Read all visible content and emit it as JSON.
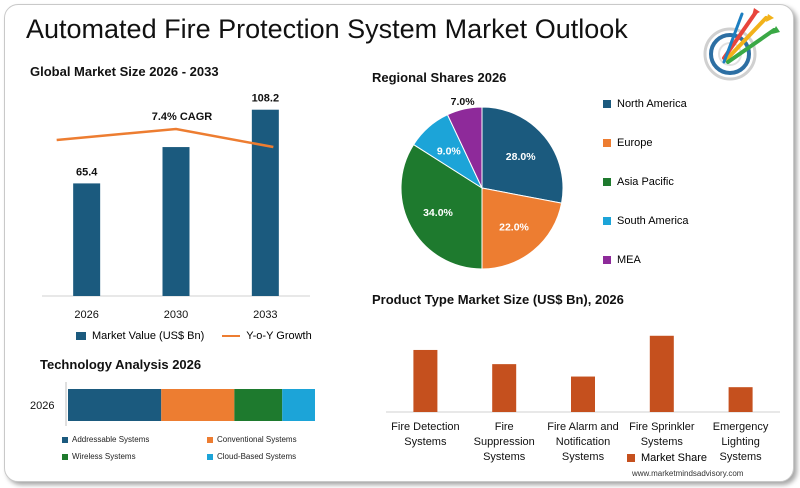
{
  "title": "Automated Fire Protection System Market Outlook",
  "source": "www.marketmindsadvisory.com",
  "colors": {
    "navy": "#1b5a7e",
    "orange": "#ed7d31",
    "green": "#1e7a2e",
    "lightblue": "#1ca4d8",
    "purple": "#8e2a9a",
    "rust": "#c5501e"
  },
  "chart_data": [
    {
      "type": "bar",
      "title": "Global Market Size 2026 - 2033",
      "categories": [
        "2026",
        "2030",
        "2033"
      ],
      "series": [
        {
          "name": "Market Value (US$ Bn)",
          "values": [
            65.4,
            null,
            108.2
          ]
        },
        {
          "name": "Y-o-Y Growth",
          "type": "line"
        }
      ],
      "bar_estimated": [
        65.4,
        86.5,
        108.2
      ],
      "annotation": "7.4% CAGR",
      "ylim": [
        0,
        115
      ]
    },
    {
      "type": "pie",
      "title": "Regional Shares 2026",
      "labels": [
        "North America",
        "Europe",
        "Asia Pacific",
        "South America",
        "MEA"
      ],
      "values": [
        28.0,
        22.0,
        34.0,
        9.0,
        7.0
      ],
      "value_labels": [
        "28.0%",
        "22.0%",
        "34.0%",
        "9.0%",
        "7.0%"
      ],
      "legend": "right"
    },
    {
      "type": "bar",
      "title": "Technology Analysis 2026",
      "orientation": "horizontal-stacked",
      "categories": [
        "2026"
      ],
      "series": [
        {
          "name": "Addressable Systems",
          "values": [
            37
          ]
        },
        {
          "name": "Conventional Systems",
          "values": [
            29
          ]
        },
        {
          "name": "Wireless Systems",
          "values": [
            19
          ]
        },
        {
          "name": "Cloud-Based Systems",
          "values": [
            13
          ]
        }
      ]
    },
    {
      "type": "bar",
      "title": "Product Type Market Size (US$ Bn), 2026",
      "categories": [
        "Fire Detection Systems",
        "Fire Suppression Systems",
        "Fire Alarm and Notification Systems",
        "Fire Sprinkler Systems",
        "Emergency Lighting Systems"
      ],
      "category_lines": [
        [
          "Fire Detection",
          "Systems"
        ],
        [
          "Fire",
          "Suppression",
          "Systems"
        ],
        [
          "Fire Alarm and",
          "Notification",
          "Systems"
        ],
        [
          "Fire Sprinkler",
          "Systems"
        ],
        [
          "Emergency",
          "Lighting",
          "Systems"
        ]
      ],
      "series": [
        {
          "name": "Market Share",
          "values": [
            17.5,
            13.5,
            10,
            21.5,
            7
          ]
        }
      ],
      "legend": "bottom"
    }
  ]
}
